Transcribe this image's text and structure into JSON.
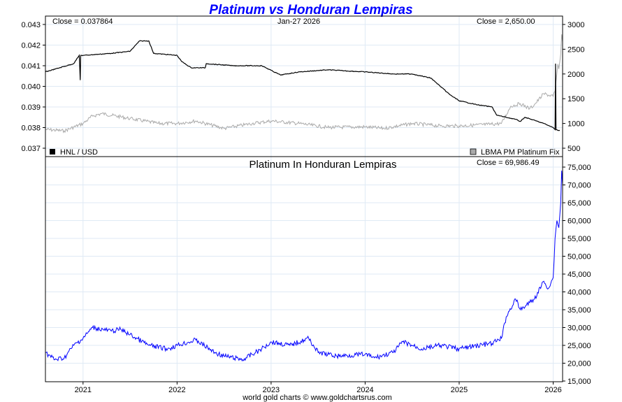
{
  "chart_data": [
    {
      "type": "line",
      "title": "Platinum vs Honduran Lempiras",
      "date_label": "Jan-27  2026",
      "left_axis": {
        "ticks": [
          "0.043",
          "0.042",
          "0.041",
          "0.040",
          "0.039",
          "0.038",
          "0.037"
        ],
        "values": [
          0.043,
          0.042,
          0.041,
          0.04,
          0.039,
          0.038,
          0.037
        ],
        "ylim": [
          0.0366,
          0.0432
        ]
      },
      "right_axis": {
        "ticks": [
          "3000",
          "2500",
          "2000",
          "1500",
          "1000",
          "500"
        ],
        "values": [
          3000,
          2500,
          2000,
          1500,
          1000,
          500
        ],
        "ylim": [
          440,
          3030
        ]
      },
      "close_left": "Close = 0.037864",
      "close_right": "Close = 2,650.00",
      "series": [
        {
          "name": "HNL / USD",
          "axis": "left",
          "color": "#000000",
          "x": [
            2020.6,
            2020.75,
            2020.9,
            2020.96,
            2020.97,
            2020.975,
            2021.0,
            2021.3,
            2021.5,
            2021.6,
            2021.7,
            2021.75,
            2022.0,
            2022.05,
            2022.15,
            2022.3,
            2022.31,
            2022.6,
            2022.9,
            2023.1,
            2023.3,
            2023.6,
            2024.0,
            2024.3,
            2024.5,
            2024.7,
            2024.9,
            2025.0,
            2025.2,
            2025.35,
            2025.4,
            2025.6,
            2025.65,
            2025.7,
            2025.9,
            2026.0,
            2026.02,
            2026.025,
            2026.03,
            2026.07
          ],
          "y": [
            0.0407,
            0.0409,
            0.0411,
            0.0415,
            0.0403,
            0.0415,
            0.0415,
            0.0416,
            0.0417,
            0.0422,
            0.0422,
            0.0416,
            0.0415,
            0.0412,
            0.0409,
            0.0409,
            0.0411,
            0.041,
            0.041,
            0.04055,
            0.0407,
            0.0408,
            0.0407,
            0.0406,
            0.0406,
            0.0404,
            0.0396,
            0.0393,
            0.0391,
            0.039,
            0.0386,
            0.0384,
            0.0383,
            0.0385,
            0.0382,
            0.038,
            0.0379,
            0.0411,
            0.0379,
            0.037864
          ]
        },
        {
          "name": "LBMA PM Platinum Fix",
          "axis": "right",
          "color": "#aaaaaa",
          "x": [
            2020.6,
            2020.8,
            2021.0,
            2021.1,
            2021.2,
            2021.5,
            2021.8,
            2022.0,
            2022.2,
            2022.5,
            2022.8,
            2023.0,
            2023.3,
            2023.6,
            2024.0,
            2024.2,
            2024.5,
            2024.8,
            2025.0,
            2025.3,
            2025.45,
            2025.55,
            2025.65,
            2025.75,
            2025.8,
            2025.9,
            2026.0,
            2026.02,
            2026.05,
            2026.06,
            2026.08,
            2026.09,
            2026.1
          ],
          "y": [
            880,
            850,
            1000,
            1150,
            1200,
            1100,
            1000,
            1000,
            1050,
            900,
            1000,
            1050,
            1000,
            920,
            930,
            900,
            1000,
            950,
            950,
            980,
            1000,
            1350,
            1400,
            1300,
            1380,
            1600,
            1550,
            1650,
            2200,
            2100,
            2400,
            2800,
            2650
          ]
        }
      ],
      "legend": [
        "HNL / USD",
        "LBMA PM Platinum Fix"
      ]
    },
    {
      "type": "line",
      "title": "Platinum In Honduran Lempiras",
      "close": "Close = 69,986.49",
      "axis": {
        "ticks": [
          "75,000",
          "70,000",
          "65,000",
          "60,000",
          "55,000",
          "50,000",
          "45,000",
          "40,000",
          "35,000",
          "30,000",
          "25,000",
          "20,000",
          "15,000"
        ],
        "values": [
          75000,
          70000,
          65000,
          60000,
          55000,
          50000,
          45000,
          40000,
          35000,
          30000,
          25000,
          20000,
          15000
        ],
        "ylim": [
          15000,
          76000
        ]
      },
      "x_ticks": [
        "2021",
        "2022",
        "2023",
        "2024",
        "2025",
        "2026"
      ],
      "x_tick_values": [
        2021,
        2022,
        2023,
        2024,
        2025,
        2026
      ],
      "xlim": [
        2020.6,
        2026.1
      ],
      "series": [
        {
          "name": "Platinum In Honduran Lempiras",
          "color": "#0000ff",
          "x": [
            2020.6,
            2020.7,
            2020.8,
            2020.9,
            2021.0,
            2021.1,
            2021.3,
            2021.4,
            2021.5,
            2021.7,
            2021.9,
            2022.0,
            2022.2,
            2022.4,
            2022.5,
            2022.7,
            2022.9,
            2023.0,
            2023.2,
            2023.4,
            2023.5,
            2023.7,
            2024.0,
            2024.1,
            2024.3,
            2024.4,
            2024.6,
            2024.8,
            2025.0,
            2025.2,
            2025.35,
            2025.45,
            2025.5,
            2025.6,
            2025.65,
            2025.75,
            2025.8,
            2025.9,
            2025.95,
            2026.0,
            2026.02,
            2026.04,
            2026.06,
            2026.08,
            2026.09,
            2026.1
          ],
          "y": [
            23000,
            21000,
            21500,
            25000,
            27000,
            30000,
            29000,
            29500,
            28000,
            25000,
            24000,
            25000,
            26500,
            23000,
            22000,
            21000,
            24000,
            26000,
            25000,
            27000,
            23000,
            22000,
            22500,
            21500,
            23000,
            26000,
            24000,
            25000,
            24000,
            25000,
            25500,
            27000,
            33000,
            38000,
            35000,
            37000,
            38000,
            43000,
            41000,
            44000,
            55000,
            60000,
            58000,
            65000,
            74000,
            69986
          ]
        }
      ]
    }
  ],
  "footer": "world gold charts © www.goldchartsrus.com"
}
